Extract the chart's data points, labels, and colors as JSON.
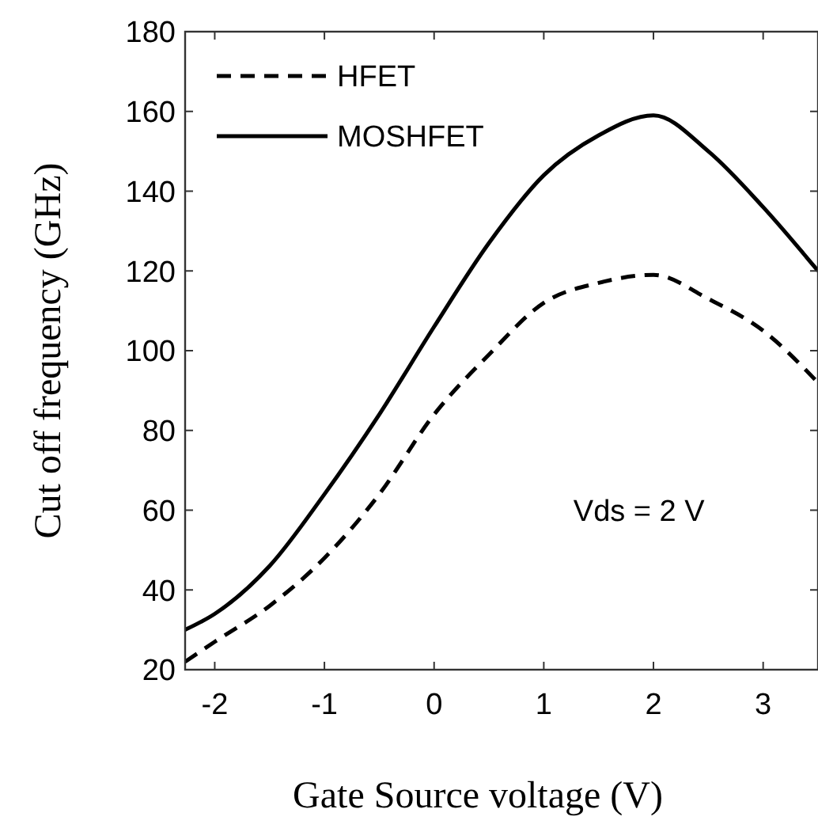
{
  "chart_data": {
    "type": "line",
    "xlabel": "Gate Source voltage (V)",
    "ylabel": "Cut off frequency (GHz)",
    "xlim": [
      -2.27,
      3.5
    ],
    "ylim": [
      20,
      180
    ],
    "xticks": [
      -2,
      -1,
      0,
      1,
      2,
      3
    ],
    "yticks": [
      20,
      40,
      60,
      80,
      100,
      120,
      140,
      160,
      180
    ],
    "legend": "top left",
    "grid": false,
    "annotations": [
      "Vds = 2 V"
    ],
    "x": [
      -2.27,
      -2,
      -1.5,
      -1,
      -0.5,
      0,
      0.5,
      1,
      1.5,
      2,
      2.5,
      3,
      3.5
    ],
    "series": [
      {
        "name": "HFET",
        "color": "#000000",
        "line_style": "dashed",
        "values": [
          22,
          27,
          36,
          48,
          64,
          84,
          99,
          112,
          117,
          119,
          113,
          105,
          92
        ]
      },
      {
        "name": "MOSHFET",
        "color": "#000000",
        "line_style": "solid",
        "values": [
          30,
          34,
          46,
          64,
          84,
          106,
          127,
          144,
          154,
          159,
          150,
          136,
          120
        ]
      }
    ]
  }
}
